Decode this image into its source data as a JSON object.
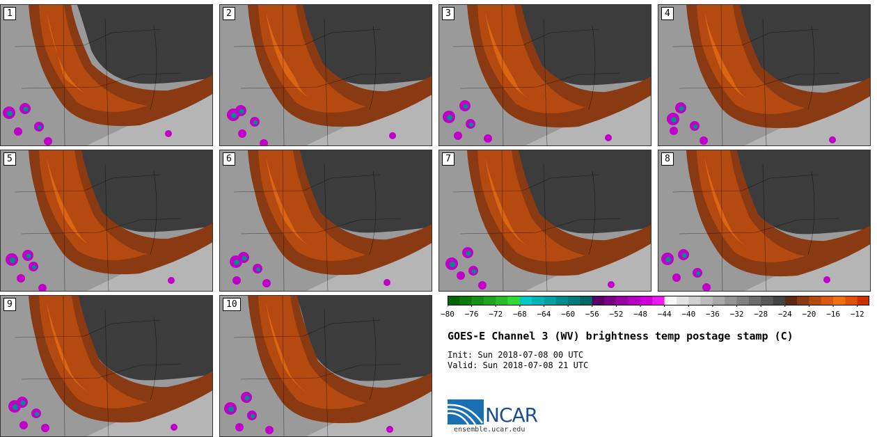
{
  "chart_data": {
    "type": "heatmap",
    "title": "GOES-E Channel 3 (WV) brightness temp postage stamp (C)",
    "init": "Init: Sun 2018-07-08 00 UTC",
    "valid": "Valid: Sun 2018-07-08 21 UTC",
    "panels": [
      "1",
      "2",
      "3",
      "4",
      "5",
      "6",
      "7",
      "8",
      "9",
      "10"
    ],
    "colorbar": {
      "ticks": [
        -80,
        -76,
        -72,
        -68,
        -64,
        -60,
        -56,
        -52,
        -48,
        -44,
        -40,
        -36,
        -32,
        -28,
        -24,
        -20,
        -16,
        -12
      ],
      "range": [
        -80,
        -10
      ],
      "bins": [
        {
          "from": -80,
          "to": -78,
          "color": "#006400"
        },
        {
          "from": -78,
          "to": -76,
          "color": "#0a7a0a"
        },
        {
          "from": -76,
          "to": -74,
          "color": "#149014"
        },
        {
          "from": -74,
          "to": -72,
          "color": "#1ea61e"
        },
        {
          "from": -72,
          "to": -70,
          "color": "#28bc28"
        },
        {
          "from": -70,
          "to": -68,
          "color": "#34d834"
        },
        {
          "from": -68,
          "to": -66,
          "color": "#00c8c8"
        },
        {
          "from": -66,
          "to": -64,
          "color": "#00b4b4"
        },
        {
          "from": -64,
          "to": -62,
          "color": "#00a0a0"
        },
        {
          "from": -62,
          "to": -60,
          "color": "#008c8c"
        },
        {
          "from": -60,
          "to": -58,
          "color": "#007a7a"
        },
        {
          "from": -58,
          "to": -56,
          "color": "#006666"
        },
        {
          "from": -56,
          "to": -54,
          "color": "#5a0064"
        },
        {
          "from": -54,
          "to": -52,
          "color": "#7a0082"
        },
        {
          "from": -52,
          "to": -50,
          "color": "#9600a0"
        },
        {
          "from": -50,
          "to": -48,
          "color": "#b400be"
        },
        {
          "from": -48,
          "to": -46,
          "color": "#d000d8"
        },
        {
          "from": -46,
          "to": -44,
          "color": "#e81cf0"
        },
        {
          "from": -44,
          "to": -42,
          "color": "#f8f8f8"
        },
        {
          "from": -42,
          "to": -40,
          "color": "#e4e4e4"
        },
        {
          "from": -40,
          "to": -38,
          "color": "#d0d0d0"
        },
        {
          "from": -38,
          "to": -36,
          "color": "#bcbcbc"
        },
        {
          "from": -36,
          "to": -34,
          "color": "#a8a8a8"
        },
        {
          "from": -34,
          "to": -32,
          "color": "#949494"
        },
        {
          "from": -32,
          "to": -30,
          "color": "#808080"
        },
        {
          "from": -30,
          "to": -28,
          "color": "#6c6c6c"
        },
        {
          "from": -28,
          "to": -26,
          "color": "#585858"
        },
        {
          "from": -26,
          "to": -24,
          "color": "#444444"
        },
        {
          "from": -24,
          "to": -22,
          "color": "#5a2a14"
        },
        {
          "from": -22,
          "to": -20,
          "color": "#8a3a12"
        },
        {
          "from": -20,
          "to": -18,
          "color": "#b44a10"
        },
        {
          "from": -18,
          "to": -16,
          "color": "#d85a10"
        },
        {
          "from": -16,
          "to": -14,
          "color": "#f07010"
        },
        {
          "from": -14,
          "to": -12,
          "color": "#e05008"
        },
        {
          "from": -12,
          "to": -10,
          "color": "#c83000"
        }
      ]
    }
  },
  "branding": {
    "logo_text": "NCAR",
    "site": "ensemble.ucar.edu"
  },
  "colors": {
    "band_dark": "#8a3a12",
    "band_mid": "#b44a10",
    "band_bright": "#e06a14",
    "dry_dark": "#3c3c3c",
    "moist": "#9a9a9a",
    "convect": "#c000c8",
    "convect_core": "#008c8c"
  }
}
